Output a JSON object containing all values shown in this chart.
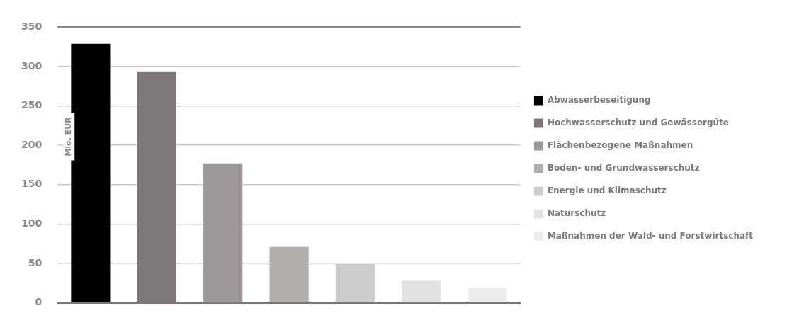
{
  "chart_data": {
    "type": "bar",
    "ylabel": "Mio. EUR",
    "categories": [
      null,
      null,
      null,
      null,
      null,
      null,
      null
    ],
    "series": [
      {
        "name": "Abwasserbeseitigung",
        "color": "#000000",
        "values": [
          329,
          null,
          null,
          null,
          null,
          null,
          null
        ]
      },
      {
        "name": "Hochwasserschutz und Gewässergüte",
        "color": "#7d7877",
        "values": [
          null,
          294,
          null,
          null,
          null,
          null,
          null
        ]
      },
      {
        "name": "Flächenbezogene Maßnahmen",
        "color": "#9c9899",
        "values": [
          null,
          null,
          177,
          null,
          null,
          null,
          null
        ]
      },
      {
        "name": "Boden- und Grundwasserschutz",
        "color": "#b2aeac",
        "values": [
          null,
          null,
          null,
          71,
          null,
          null,
          null
        ]
      },
      {
        "name": "Energie und Klimaschutz",
        "color": "#cecbcc",
        "values": [
          null,
          null,
          null,
          null,
          49,
          null,
          null
        ]
      },
      {
        "name": "Naturschutz",
        "color": "#e3e1e2",
        "values": [
          null,
          null,
          null,
          null,
          null,
          28,
          null
        ]
      },
      {
        "name": "Maßnahmen der Wald- und Forstwirtschaft",
        "color": "#eeeded",
        "values": [
          null,
          null,
          null,
          null,
          null,
          null,
          19
        ]
      }
    ],
    "ylim": [
      0,
      350
    ],
    "yticks": [
      0,
      50,
      100,
      150,
      200,
      250,
      300,
      350
    ],
    "grid": "y",
    "legend": "right",
    "tick_labels": "y"
  }
}
